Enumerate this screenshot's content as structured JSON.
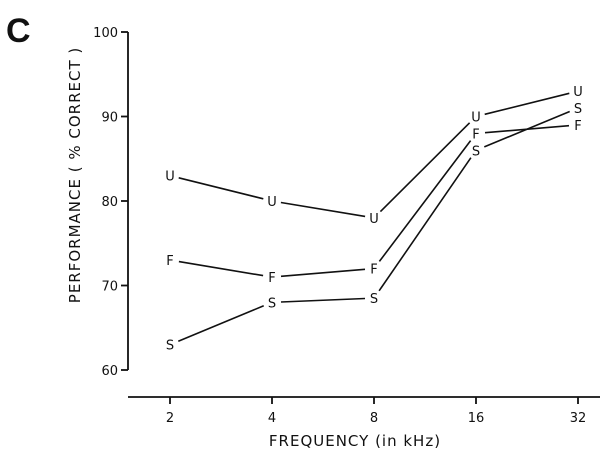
{
  "panel_label": "C",
  "chart_data": {
    "type": "line",
    "xlabel": "FREQUENCY (in kHz)",
    "ylabel": "PERFORMANCE ( % CORRECT )",
    "categories": [
      "2",
      "4",
      "8",
      "16",
      "32"
    ],
    "ylim": [
      60,
      100
    ],
    "yticks": [
      60,
      70,
      80,
      90,
      100
    ],
    "grid": false,
    "legend": "none",
    "series": [
      {
        "marker": "U",
        "values": [
          83,
          80,
          78,
          90,
          93
        ]
      },
      {
        "marker": "F",
        "values": [
          73,
          71,
          72,
          88,
          89
        ]
      },
      {
        "marker": "S",
        "values": [
          63,
          68,
          68.5,
          86,
          91
        ]
      }
    ]
  }
}
